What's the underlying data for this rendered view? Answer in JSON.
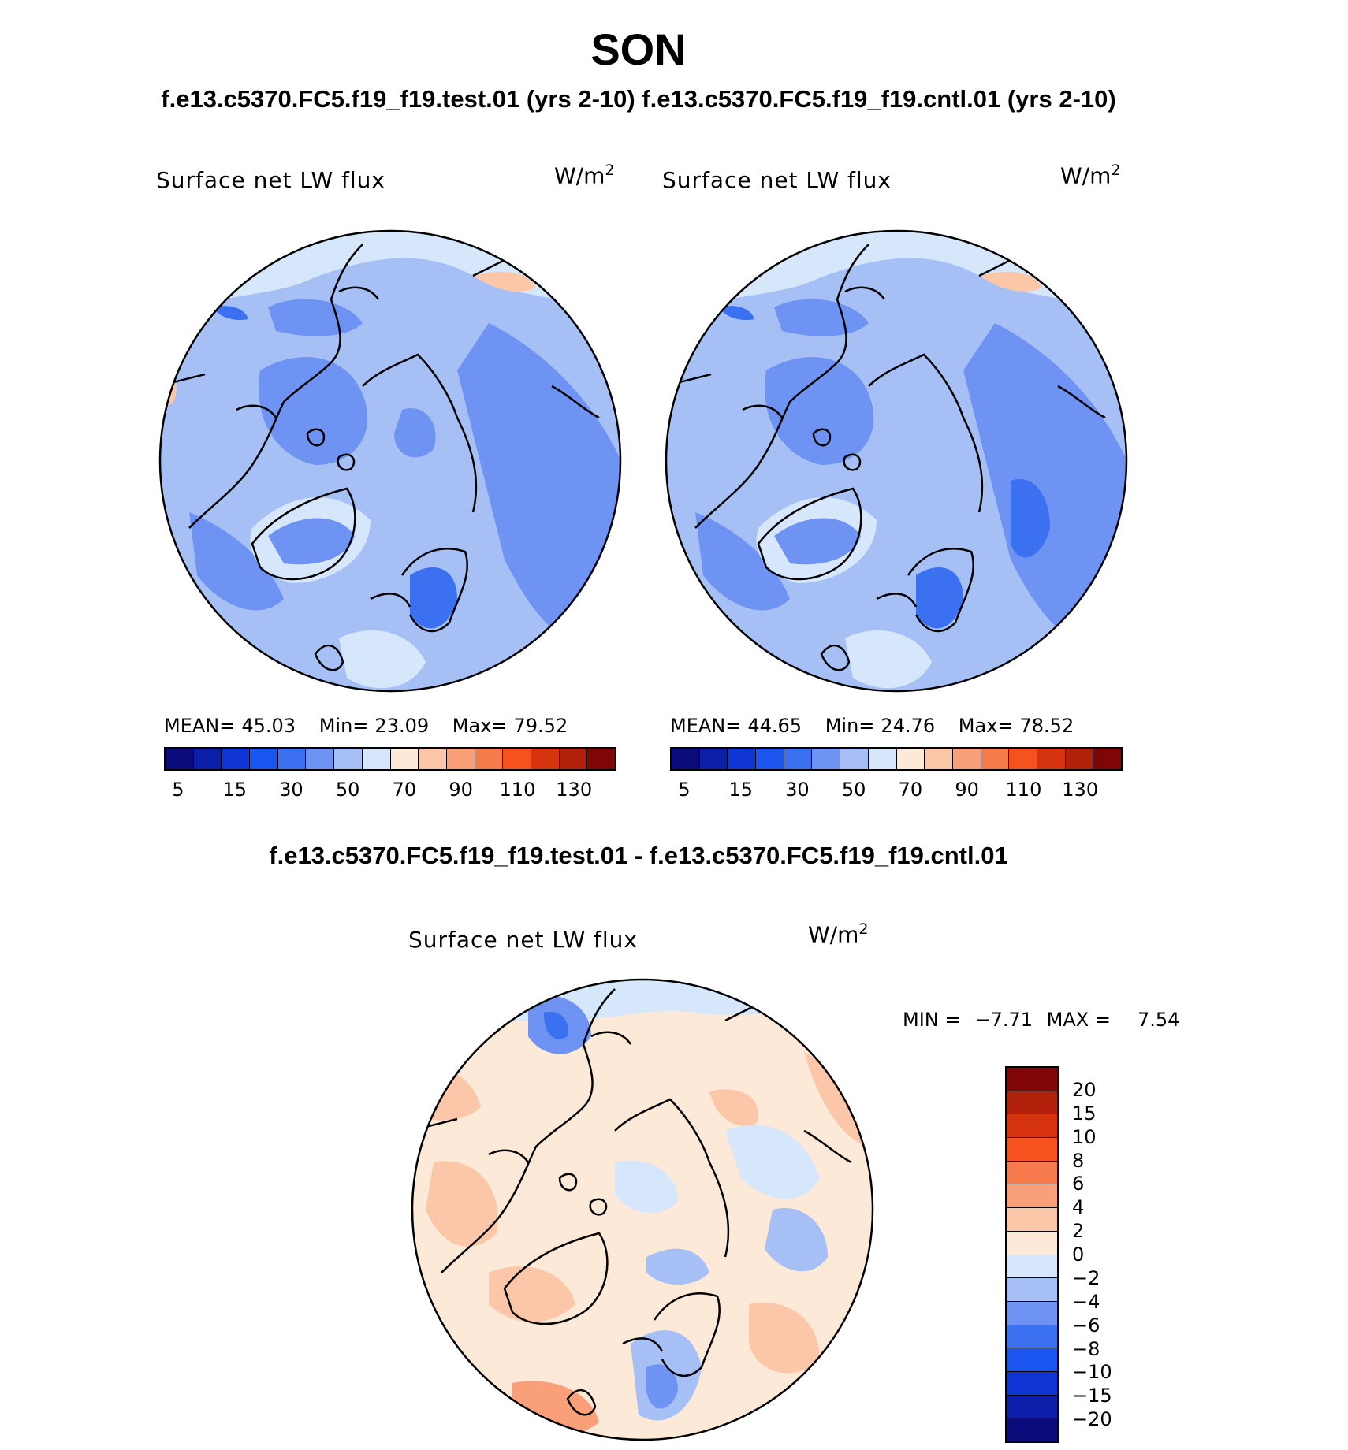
{
  "title": "SON",
  "subtitle": "f.e13.c5370.FC5.f19_f19.test.01 (yrs 2-10) f.e13.c5370.FC5.f19_f19.cntl.01 (yrs 2-10)",
  "diff_title": "f.e13.c5370.FC5.f19_f19.test.01 - f.e13.c5370.FC5.f19_f19.cntl.01",
  "panels": [
    {
      "label": "Surface net LW flux",
      "unit": "W/m",
      "unit_sup": "2",
      "mean_label": "MEAN=",
      "mean": "45.03",
      "min_label": "Min=",
      "min": "23.09",
      "max_label": "Max=",
      "max": "79.52"
    },
    {
      "label": "Surface net LW flux",
      "unit": "W/m",
      "unit_sup": "2",
      "mean_label": "MEAN=",
      "mean": "44.65",
      "min_label": "Min=",
      "min": "24.76",
      "max_label": "Max=",
      "max": "78.52"
    }
  ],
  "diff_panel": {
    "label": "Surface net LW flux",
    "unit": "W/m",
    "unit_sup": "2",
    "min_label": "MIN =",
    "min": "−7.71",
    "max_label": "MAX =",
    "max": "7.54"
  },
  "colorbar_main": {
    "colors": [
      "#0a0a7a",
      "#0c1fa8",
      "#0f36d4",
      "#1b55f0",
      "#3b70f0",
      "#6e93f2",
      "#a6c0f6",
      "#d6e6fb",
      "#fde9d8",
      "#fbc7a8",
      "#f9a07a",
      "#f77a4c",
      "#f55220",
      "#d6340e",
      "#b0200a",
      "#800606"
    ],
    "ticks": [
      "5",
      "15",
      "30",
      "50",
      "70",
      "90",
      "110",
      "130"
    ]
  },
  "colorbar_diff": {
    "colors": [
      "#800606",
      "#b0200a",
      "#d6340e",
      "#f55220",
      "#f77a4c",
      "#f9a07a",
      "#fbc7a8",
      "#fde9d8",
      "#d6e6fb",
      "#a6c0f6",
      "#6e93f2",
      "#3b70f0",
      "#1b55f0",
      "#0f36d4",
      "#0c1fa8",
      "#0a0a7a"
    ],
    "ticks": [
      "20",
      "15",
      "10",
      "8",
      "6",
      "4",
      "2",
      "0",
      "−2",
      "−4",
      "−6",
      "−8",
      "−10",
      "−15",
      "−20"
    ]
  }
}
